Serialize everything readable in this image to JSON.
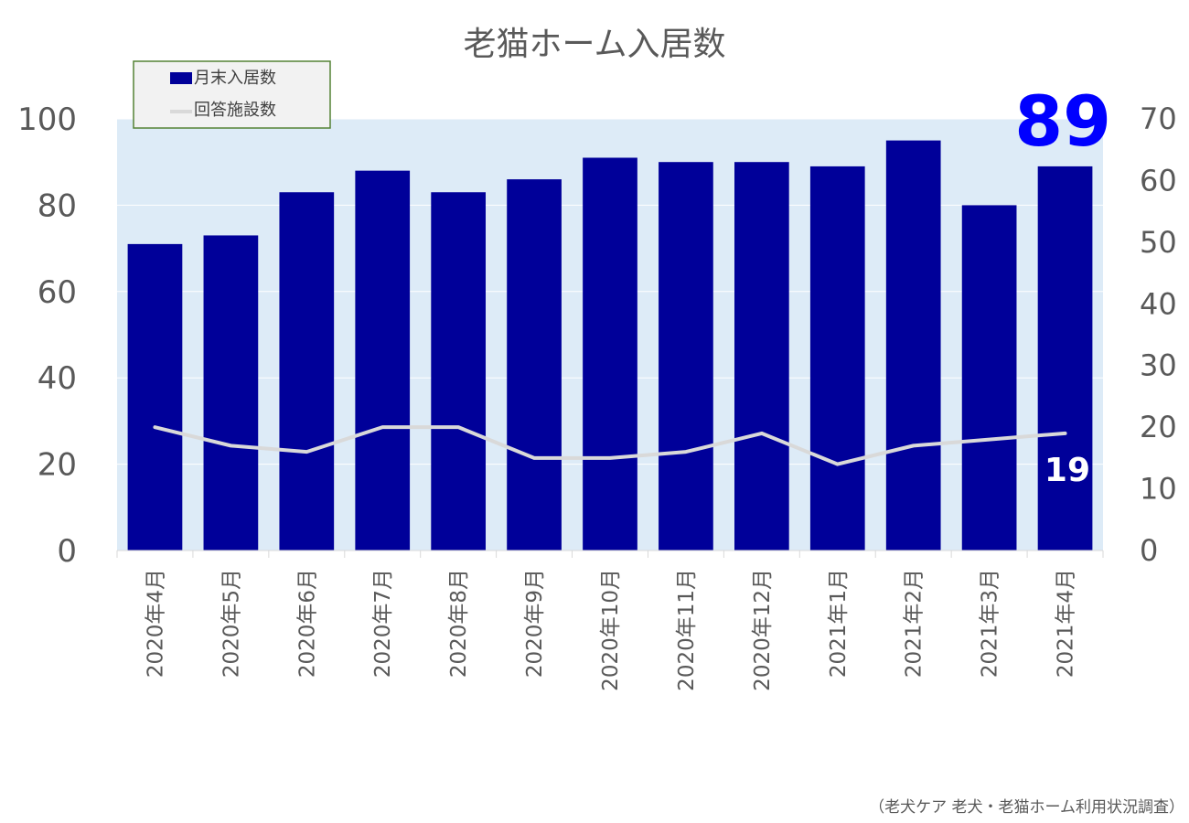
{
  "chart_data": {
    "type": "bar",
    "title": "老猫ホーム入居数",
    "categories": [
      "2020年4月",
      "2020年5月",
      "2020年6月",
      "2020年7月",
      "2020年8月",
      "2020年9月",
      "2020年10月",
      "2020年11月",
      "2020年12月",
      "2021年1月",
      "2021年2月",
      "2021年3月",
      "2021年4月"
    ],
    "series": [
      {
        "name": "月末入居数",
        "kind": "bar",
        "axis": "left",
        "color": "#000099",
        "values": [
          71,
          73,
          83,
          88,
          83,
          86,
          91,
          90,
          90,
          89,
          95,
          80,
          89
        ]
      },
      {
        "name": "回答施設数",
        "kind": "line",
        "axis": "right",
        "color": "#d9d9d9",
        "values": [
          20,
          17,
          16,
          20,
          20,
          15,
          15,
          16,
          19,
          14,
          17,
          18,
          19
        ]
      }
    ],
    "ylim": [
      0,
      100
    ],
    "yticks": [
      "0",
      "20",
      "40",
      "60",
      "80",
      "100"
    ],
    "y2lim": [
      0,
      70
    ],
    "y2ticks": [
      "0",
      "10",
      "20",
      "30",
      "40",
      "50",
      "60",
      "70"
    ],
    "grid": true,
    "legend_position": "top-left",
    "plot_background": "#ddebf7",
    "last_bar_label": "89",
    "last_bar_label_color": "#0000ff",
    "last_line_label": "19",
    "last_line_label_color": "#ffffff"
  },
  "source_note": "（老犬ケア 老犬・老猫ホーム利用状況調査）"
}
